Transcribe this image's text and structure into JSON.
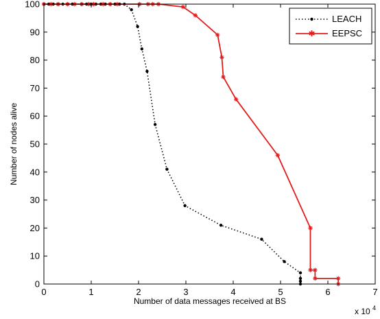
{
  "chart_data": {
    "type": "line",
    "title": "",
    "xlabel": "Number of data messages received at BS",
    "ylabel": "Number of nodes alive",
    "x_multiplier_label": "x 10",
    "x_multiplier_exponent": "4",
    "xlim": [
      0,
      7
    ],
    "ylim": [
      0,
      100
    ],
    "xticks": [
      0,
      1,
      2,
      3,
      4,
      5,
      6,
      7
    ],
    "yticks": [
      0,
      10,
      20,
      30,
      40,
      50,
      60,
      70,
      80,
      90,
      100
    ],
    "grid": false,
    "legend_position": "top-right",
    "series": [
      {
        "name": "LEACH",
        "color": "#000000",
        "line_style": "dotted",
        "marker": "dot",
        "points": [
          [
            0.0,
            100
          ],
          [
            0.1,
            100
          ],
          [
            0.2,
            100
          ],
          [
            0.3,
            100
          ],
          [
            0.4,
            100
          ],
          [
            0.5,
            100
          ],
          [
            0.6,
            100
          ],
          [
            0.8,
            100
          ],
          [
            0.9,
            100
          ],
          [
            1.0,
            100
          ],
          [
            1.1,
            100
          ],
          [
            1.2,
            100
          ],
          [
            1.3,
            100
          ],
          [
            1.4,
            100
          ],
          [
            1.5,
            100
          ],
          [
            1.6,
            100
          ],
          [
            1.7,
            100
          ],
          [
            1.85,
            98
          ],
          [
            1.98,
            92
          ],
          [
            2.07,
            84
          ],
          [
            2.18,
            76
          ],
          [
            2.35,
            57
          ],
          [
            2.6,
            41
          ],
          [
            2.98,
            28
          ],
          [
            3.74,
            21
          ],
          [
            4.6,
            16
          ],
          [
            5.08,
            8
          ],
          [
            5.42,
            4
          ],
          [
            5.42,
            2
          ],
          [
            5.42,
            1
          ],
          [
            5.42,
            0
          ]
        ]
      },
      {
        "name": "EEPSC",
        "color": "#e11b1b",
        "line_style": "solid",
        "marker": "star",
        "points": [
          [
            0.0,
            100
          ],
          [
            0.15,
            100
          ],
          [
            0.3,
            100
          ],
          [
            0.5,
            100
          ],
          [
            0.65,
            100
          ],
          [
            0.8,
            100
          ],
          [
            0.95,
            100
          ],
          [
            1.05,
            100
          ],
          [
            1.25,
            100
          ],
          [
            1.4,
            100
          ],
          [
            1.55,
            100
          ],
          [
            2.02,
            100
          ],
          [
            2.2,
            100
          ],
          [
            2.3,
            100
          ],
          [
            2.42,
            100
          ],
          [
            2.94,
            99
          ],
          [
            3.2,
            96
          ],
          [
            3.67,
            89
          ],
          [
            3.76,
            81
          ],
          [
            3.79,
            74
          ],
          [
            4.06,
            66
          ],
          [
            4.94,
            46
          ],
          [
            5.63,
            20
          ],
          [
            5.63,
            5
          ],
          [
            5.73,
            5
          ],
          [
            5.73,
            2
          ],
          [
            6.22,
            2
          ],
          [
            6.22,
            0
          ]
        ]
      }
    ]
  }
}
